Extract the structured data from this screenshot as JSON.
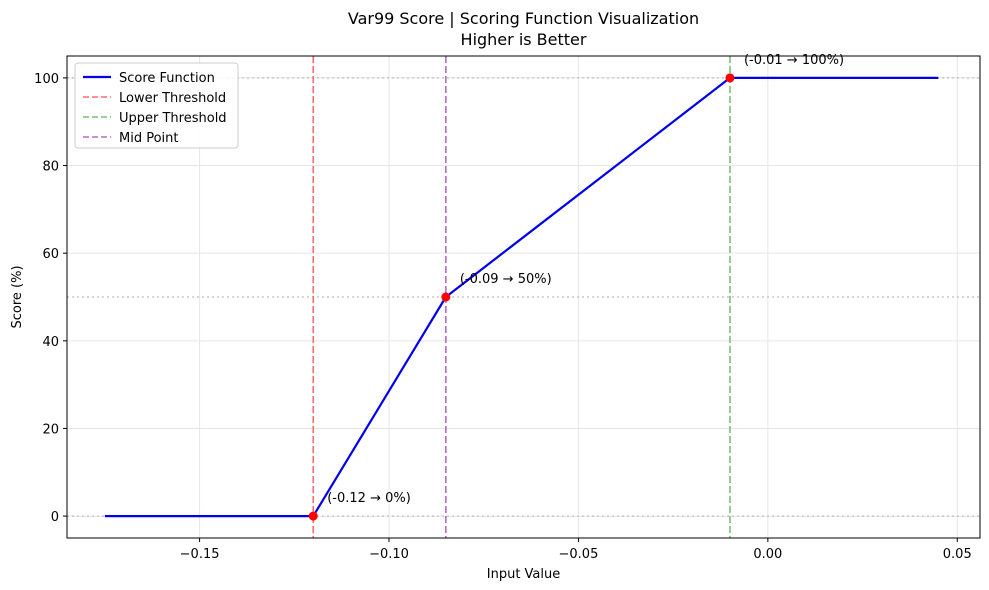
{
  "chart_data": {
    "type": "line",
    "title": "Var99 Score | Scoring Function Visualization",
    "subtitle": "Higher is Better",
    "xlabel": "Input Value",
    "ylabel": "Score (%)",
    "xlim": [
      -0.185,
      0.056
    ],
    "ylim": [
      -5,
      105
    ],
    "xticks": [
      -0.15,
      -0.1,
      -0.05,
      0.0,
      0.05
    ],
    "xtick_labels": [
      "−0.15",
      "−0.10",
      "−0.05",
      "0.00",
      "0.05"
    ],
    "yticks": [
      0,
      20,
      40,
      60,
      80,
      100
    ],
    "ytick_labels": [
      "0",
      "20",
      "40",
      "60",
      "80",
      "100"
    ],
    "grid": true,
    "legend_position": "top-left",
    "series": [
      {
        "name": "Score Function",
        "color": "#0000ee",
        "x": [
          -0.175,
          -0.12,
          -0.085,
          -0.01,
          0.045
        ],
        "y": [
          0,
          0,
          50,
          100,
          100
        ]
      }
    ],
    "markers": {
      "color": "#ff0000",
      "points": [
        {
          "x": -0.12,
          "y": 0,
          "label": "(-0.12 → 0%)"
        },
        {
          "x": -0.085,
          "y": 50,
          "label": "(-0.09 → 50%)"
        },
        {
          "x": -0.01,
          "y": 100,
          "label": "(-0.01 → 100%)"
        }
      ]
    },
    "vertical_lines": [
      {
        "name": "Lower Threshold",
        "x": -0.12,
        "color": "#ff6b6b"
      },
      {
        "name": "Upper Threshold",
        "x": -0.01,
        "color": "#77c177"
      },
      {
        "name": "Mid Point",
        "x": -0.085,
        "color": "#b56cc1"
      }
    ],
    "horizontal_reference_lines": [
      0,
      50,
      100
    ]
  }
}
